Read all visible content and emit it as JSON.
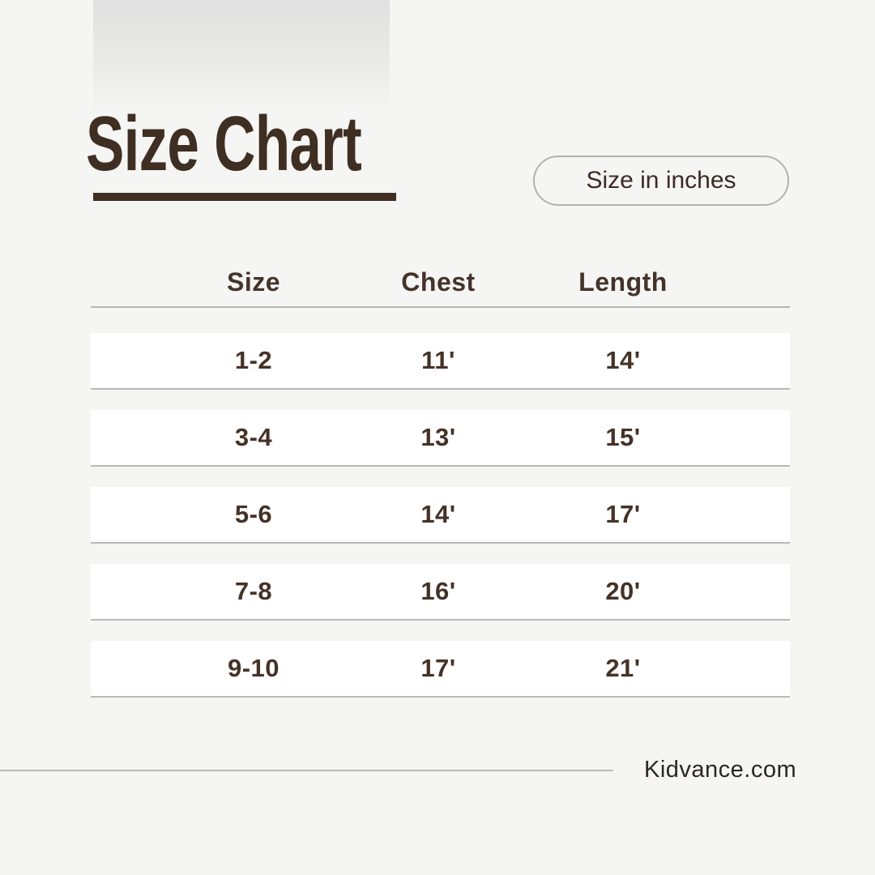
{
  "header": {
    "title": "Size Chart",
    "unit_badge_label": "Size in inches"
  },
  "table": {
    "headers": [
      "Size",
      "Chest",
      "Length"
    ],
    "rows": [
      {
        "cells": [
          "1-2",
          "11'",
          "14'"
        ]
      },
      {
        "cells": [
          "3-4",
          "13'",
          "15'"
        ]
      },
      {
        "cells": [
          "5-6",
          "14'",
          "17'"
        ]
      },
      {
        "cells": [
          "7-8",
          "16'",
          "20'"
        ]
      },
      {
        "cells": [
          "9-10",
          "17'",
          "21'"
        ]
      }
    ]
  },
  "footer": {
    "website": "Kidvance.com"
  },
  "colors": {
    "accent_brown": "#3f2e22",
    "table_text_brown": "#453227",
    "background": "#f5f5f4",
    "row_background": "#ffffff",
    "divider_gray": "#b9b9b9"
  }
}
